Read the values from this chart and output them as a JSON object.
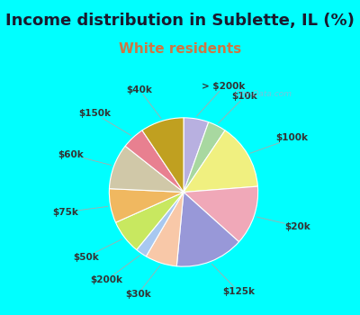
{
  "title": "Income distribution in Sublette, IL (%)",
  "subtitle": "White residents",
  "bg_color": "#00FFFF",
  "chart_bg_color": "#d8f0e0",
  "slices": [
    {
      "label": "> $200k",
      "value": 5.5,
      "color": "#b8b0e0"
    },
    {
      "label": "$10k",
      "value": 4.0,
      "color": "#a8d8a0"
    },
    {
      "label": "$100k",
      "value": 14.5,
      "color": "#f0f080"
    },
    {
      "label": "$20k",
      "value": 13.0,
      "color": "#f0a8b8"
    },
    {
      "label": "$125k",
      "value": 15.0,
      "color": "#9898d8"
    },
    {
      "label": "$30k",
      "value": 7.0,
      "color": "#f8c8a8"
    },
    {
      "label": "$200k",
      "value": 2.5,
      "color": "#a8c8f0"
    },
    {
      "label": "$50k",
      "value": 7.5,
      "color": "#c8e860"
    },
    {
      "label": "$75k",
      "value": 7.5,
      "color": "#f0b860"
    },
    {
      "label": "$60k",
      "value": 10.0,
      "color": "#d0c8a8"
    },
    {
      "label": "$150k",
      "value": 5.0,
      "color": "#e88090"
    },
    {
      "label": "$40k",
      "value": 9.5,
      "color": "#c0a020"
    }
  ],
  "title_fontsize": 13,
  "title_color": "#1a1a2e",
  "subtitle_fontsize": 11,
  "subtitle_color": "#cc7744",
  "label_fontsize": 7.5,
  "label_color": "#333333",
  "watermark": "City-Data.com"
}
